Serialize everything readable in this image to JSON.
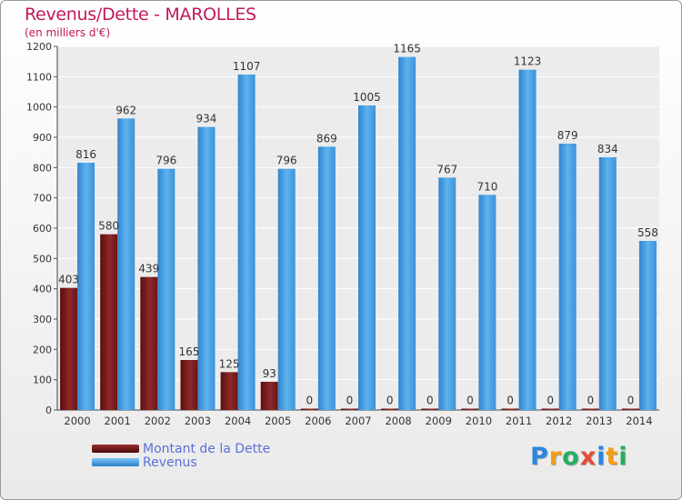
{
  "header": {
    "title": "Revenus/Dette - MAROLLES",
    "subtitle": "(en milliers d'€)"
  },
  "legend": {
    "items": [
      {
        "label": "Montant de la Dette",
        "color": "#6e1616"
      },
      {
        "label": "Revenus",
        "color": "#4aa3e6"
      }
    ]
  },
  "logo": {
    "letters": [
      "P",
      "r",
      "o",
      "x",
      "i",
      "t",
      "i"
    ],
    "colors": [
      "#2e86de",
      "#f39c12",
      "#27ae60",
      "#e74c3c",
      "#2e86de",
      "#f39c12",
      "#27ae60"
    ]
  },
  "chart_data": {
    "type": "bar",
    "title": "Revenus/Dette - MAROLLES",
    "subtitle": "(en milliers d'€)",
    "categories": [
      "2000",
      "2001",
      "2002",
      "2003",
      "2004",
      "2005",
      "2006",
      "2007",
      "2008",
      "2009",
      "2010",
      "2011",
      "2012",
      "2013",
      "2014"
    ],
    "series": [
      {
        "name": "Montant de la Dette",
        "color": "#7a1c1c",
        "values": [
          403,
          580,
          439,
          165,
          125,
          93,
          0,
          0,
          0,
          0,
          0,
          0,
          0,
          0,
          0
        ]
      },
      {
        "name": "Revenus",
        "color": "#4aa3e6",
        "values": [
          816,
          962,
          796,
          934,
          1107,
          796,
          869,
          1005,
          1165,
          767,
          710,
          1123,
          879,
          834,
          558
        ]
      }
    ],
    "ylim": [
      0,
      1200
    ],
    "yticks": [
      0,
      100,
      200,
      300,
      400,
      500,
      600,
      700,
      800,
      900,
      1000,
      1100,
      1200
    ],
    "grid": true,
    "legend_position": "bottom-left"
  }
}
